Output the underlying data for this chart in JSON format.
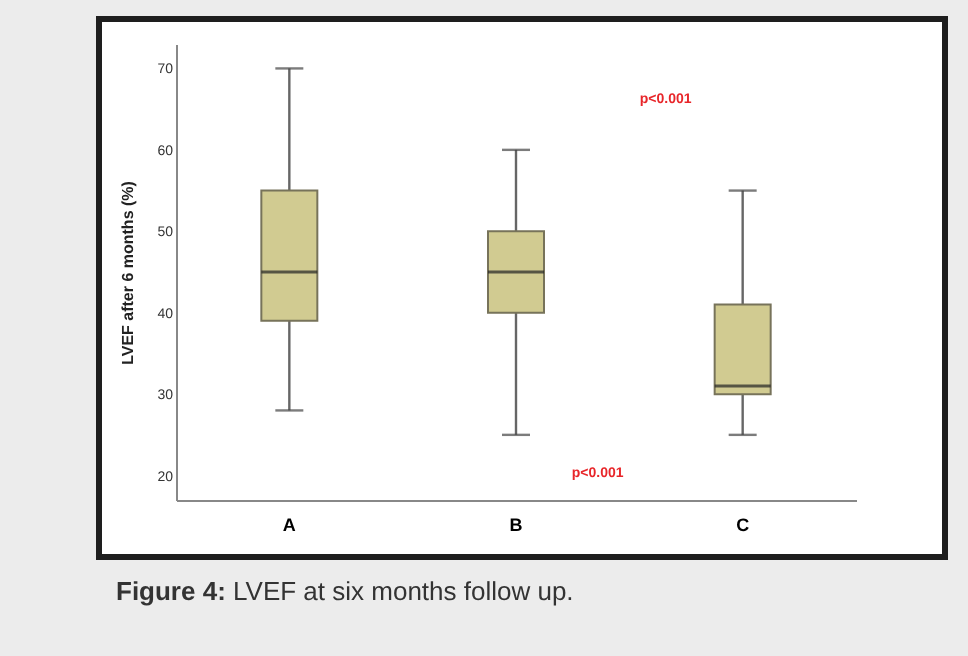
{
  "chart_data": {
    "type": "box",
    "title": "Figure 4: LVEF at six months follow up.",
    "ylabel": "LVEF after 6 months (%)",
    "categories": [
      "A",
      "B",
      "C"
    ],
    "color": "#d1cb91",
    "boxes": [
      {
        "low": 28,
        "q1": 39,
        "median": 45,
        "q3": 55,
        "high": 70
      },
      {
        "low": 25,
        "q1": 40,
        "median": 45,
        "q3": 50,
        "high": 60
      },
      {
        "low": 25,
        "q1": 30,
        "median": 31,
        "q3": 41,
        "high": 55
      }
    ],
    "ylim": [
      17,
      73
    ],
    "yticks": [
      20,
      30,
      40,
      50,
      60,
      70
    ],
    "annotations": [
      "p<0.001",
      "p<0.001"
    ]
  }
}
